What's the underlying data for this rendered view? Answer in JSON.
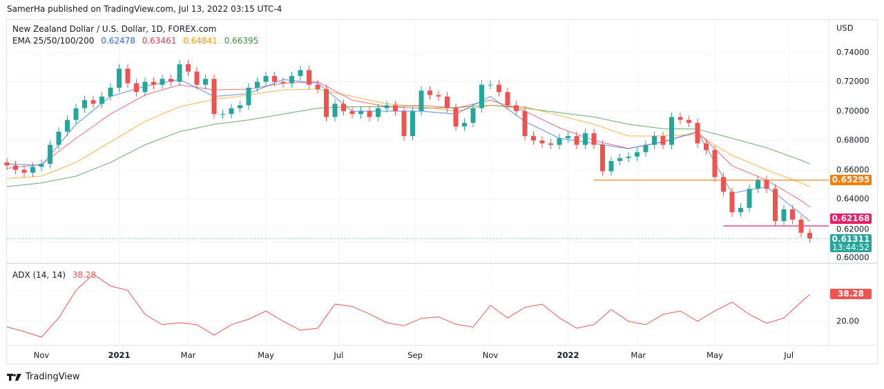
{
  "header": {
    "published": "SamerHa published on TradingView.com, Jul 13, 2022 03:15 UTC-4"
  },
  "legend": {
    "symbol": "New Zealand Dollar / U.S. Dollar, 1D, FOREX.com",
    "ema_label": "EMA 25/50/100/200",
    "ema_values": [
      "0.62478",
      "0.63461",
      "0.64841",
      "0.66395"
    ],
    "adx_label": "ADX (14, 14)",
    "adx_value": "38.28"
  },
  "price_axis": {
    "currency": "USD",
    "ticks": [
      "0.74000",
      "0.72000",
      "0.70000",
      "0.68000",
      "0.66000",
      "0.64000",
      "0.62000",
      "0.60000"
    ]
  },
  "adx_axis": {
    "ticks": [
      "20.00"
    ]
  },
  "time_axis": [
    {
      "label": "Nov",
      "date": "2020-11-02"
    },
    {
      "label": "2021",
      "date": "2021-01-04",
      "bold": true
    },
    {
      "label": "Mar",
      "date": "2021-03-01"
    },
    {
      "label": "May",
      "date": "2021-05-03"
    },
    {
      "label": "Jul",
      "date": "2021-07-01"
    },
    {
      "label": "Sep",
      "date": "2021-09-01"
    },
    {
      "label": "Nov",
      "date": "2021-11-01"
    },
    {
      "label": "2022",
      "date": "2022-01-03",
      "bold": true
    },
    {
      "label": "Mar",
      "date": "2022-03-01"
    },
    {
      "label": "May",
      "date": "2022-05-02"
    },
    {
      "label": "Jul",
      "date": "2022-07-01"
    }
  ],
  "price_tags": {
    "level1": {
      "value": "0.65295",
      "color": "#f57c00"
    },
    "level2": {
      "value": "0.62168",
      "color": "#e91e63"
    },
    "last": {
      "value": "0.61311",
      "countdown": "13:44:52",
      "color": "#26a69a"
    },
    "adx": {
      "value": "38.28",
      "color": "#ef5350"
    }
  },
  "footer": {
    "brand": "TradingView"
  },
  "chart_data": {
    "type": "candlestick",
    "symbol": "NZDUSD",
    "start_week": "2020-10-05",
    "interval": "1W (sampled)",
    "ylim": [
      0.595,
      0.748
    ],
    "grid": true,
    "colors": {
      "up": "#26a69a",
      "down": "#ef5350",
      "ema25": "#2962ff",
      "ema50": "#f23645",
      "ema100": "#ff9800",
      "ema200": "#388e3c",
      "adx": "#ef5350"
    },
    "close": [
      0.663,
      0.66,
      0.658,
      0.662,
      0.664,
      0.677,
      0.686,
      0.694,
      0.702,
      0.7075,
      0.705,
      0.71,
      0.716,
      0.729,
      0.719,
      0.713,
      0.72,
      0.718,
      0.722,
      0.72,
      0.732,
      0.727,
      0.718,
      0.722,
      0.698,
      0.698,
      0.702,
      0.704,
      0.716,
      0.72,
      0.724,
      0.72,
      0.719,
      0.724,
      0.728,
      0.718,
      0.715,
      0.696,
      0.705,
      0.7,
      0.698,
      0.7,
      0.696,
      0.702,
      0.704,
      0.7,
      0.683,
      0.7,
      0.714,
      0.711,
      0.71,
      0.702,
      0.6895,
      0.692,
      0.702,
      0.718,
      0.718,
      0.713,
      0.704,
      0.7,
      0.683,
      0.68,
      0.678,
      0.677,
      0.6815,
      0.683,
      0.677,
      0.685,
      0.677,
      0.659,
      0.666,
      0.668,
      0.669,
      0.672,
      0.677,
      0.683,
      0.677,
      0.696,
      0.694,
      0.692,
      0.678,
      0.6735,
      0.655,
      0.645,
      0.631,
      0.634,
      0.647,
      0.653,
      0.647,
      0.625,
      0.633,
      0.626,
      0.617,
      0.61311
    ],
    "ema_every_4_weeks": {
      "ema25": [
        0.664,
        0.663,
        0.691,
        0.71,
        0.717,
        0.7216,
        0.71,
        0.712,
        0.7216,
        0.719,
        0.7,
        0.7,
        0.7,
        0.698,
        0.71,
        0.693,
        0.6815,
        0.678,
        0.6745,
        0.679,
        0.686,
        0.644,
        0.6485,
        0.63,
        0.62478
      ],
      "ema50": [
        0.661,
        0.6636,
        0.6815,
        0.698,
        0.711,
        0.718,
        0.7145,
        0.715,
        0.719,
        0.72,
        0.7075,
        0.703,
        0.704,
        0.702,
        0.7075,
        0.7,
        0.6886,
        0.68,
        0.6745,
        0.679,
        0.686,
        0.6627,
        0.653,
        0.639,
        0.63461
      ],
      "ema100": [
        0.654,
        0.6556,
        0.665,
        0.679,
        0.693,
        0.703,
        0.708,
        0.711,
        0.7145,
        0.715,
        0.71,
        0.705,
        0.703,
        0.7,
        0.704,
        0.703,
        0.697,
        0.691,
        0.683,
        0.683,
        0.684,
        0.6698,
        0.66,
        0.651,
        0.64841
      ],
      "ema200": [
        0.6485,
        0.651,
        0.6556,
        0.665,
        0.677,
        0.686,
        0.691,
        0.694,
        0.698,
        0.702,
        0.703,
        0.703,
        0.702,
        0.7025,
        0.704,
        0.702,
        0.699,
        0.696,
        0.691,
        0.688,
        0.6877,
        0.6815,
        0.675,
        0.6665,
        0.66395
      ]
    },
    "horizontal_levels": [
      {
        "value": 0.65295,
        "from": "2022-01-24"
      },
      {
        "value": 0.62168,
        "from": "2022-05-09"
      }
    ],
    "adx_every_2_weeks": [
      16.2,
      13,
      9.2,
      22.3,
      41,
      52,
      44,
      41,
      24.7,
      17.7,
      19,
      17.7,
      10.6,
      17.7,
      21.4,
      27,
      20,
      13.9,
      15.3,
      31.7,
      30,
      25,
      19,
      17,
      22,
      23,
      18,
      16,
      30.8,
      22.3,
      29.4,
      31.7,
      22.3,
      15.3,
      17.7,
      28,
      20,
      17.7,
      24.7,
      27,
      20,
      27,
      33,
      24.7,
      18.6,
      22.3,
      33.1,
      38.28
    ],
    "adx_ylim": [
      0,
      60
    ]
  }
}
